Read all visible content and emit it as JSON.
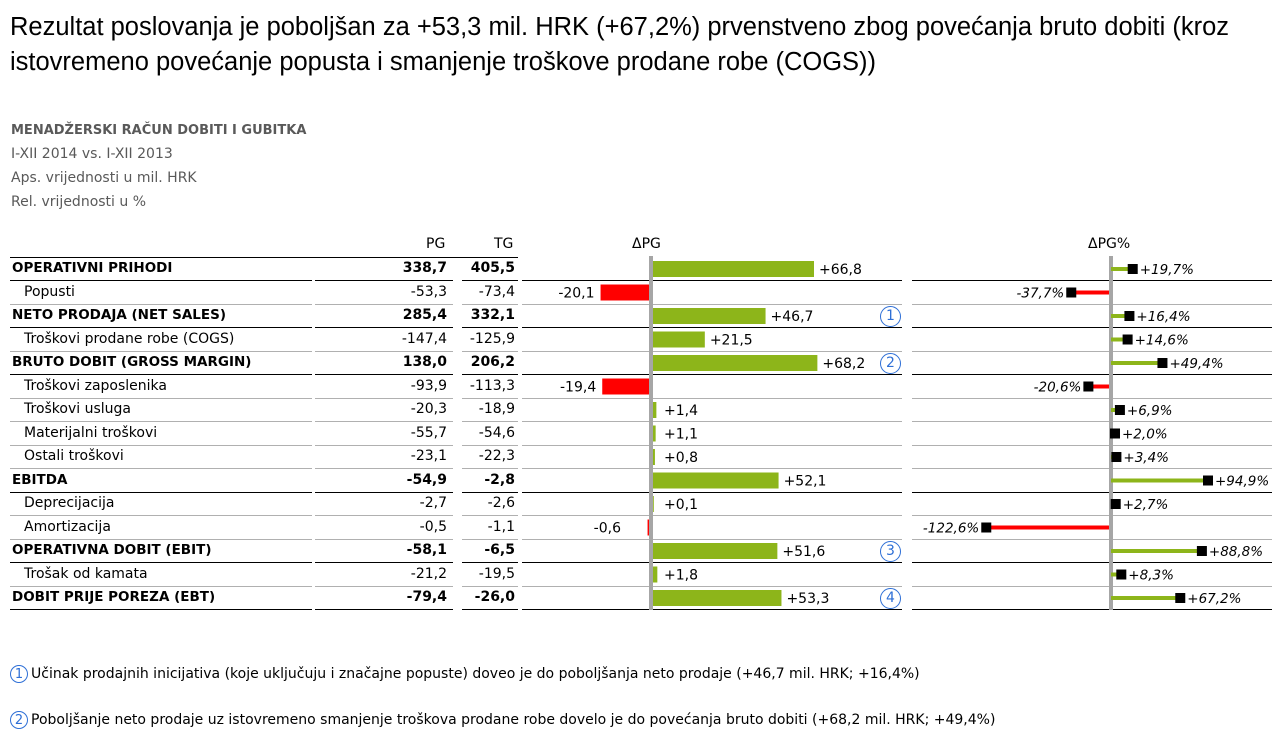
{
  "headline": "Rezultat poslovanja je poboljšan za +53,3 mil. HRK (+67,2%) prvenstveno zbog povećanja bruto dobiti (kroz istovremeno povećanje popusta i smanjenje troškove prodane robe (COGS))",
  "meta": {
    "title": "MENADŽERSKI RAČUN DOBITI I GUBITKA",
    "period": "I-XII 2014 vs. I-XII 2013",
    "abs_note": "Aps. vrijednosti u mil. HRK",
    "rel_note": "Rel. vrijednosti u %"
  },
  "columns": {
    "pg": "PG",
    "tg": "TG",
    "delta": "ΔPG",
    "delta_pct": "ΔPG%"
  },
  "colors": {
    "positive": "#8db51a",
    "negative": "#ff0000",
    "axis": "#a6a6a6",
    "marker": "#000000",
    "circle": "#2e6fd6"
  },
  "chart_data": {
    "type": "bar",
    "categories": [
      "OPERATIVNI PRIHODI",
      "Popusti",
      "NETO PRODAJA (NET SALES)",
      "Troškovi prodane robe (COGS)",
      "BRUTO DOBIT (GROSS MARGIN)",
      "Troškovi zaposlenika",
      "Troškovi usluga",
      "Materijalni troškovi",
      "Ostali troškovi",
      "EBITDA",
      "Deprecijacija",
      "Amortizacija",
      "OPERATIVNA DOBIT (EBIT)",
      "Trošak od kamata",
      "DOBIT PRIJE POREZA (EBT)"
    ],
    "series": [
      {
        "name": "PG",
        "values": [
          338.7,
          -53.3,
          285.4,
          -147.4,
          138.0,
          -93.9,
          -20.3,
          -55.7,
          -23.1,
          -54.9,
          -2.7,
          -0.5,
          -58.1,
          -21.2,
          -79.4
        ]
      },
      {
        "name": "TG",
        "values": [
          405.5,
          -73.4,
          332.1,
          -125.9,
          206.2,
          -113.3,
          -18.9,
          -54.6,
          -22.3,
          -2.8,
          -2.6,
          -1.1,
          -6.5,
          -19.5,
          -26.0
        ]
      },
      {
        "name": "ΔPG",
        "values": [
          66.8,
          -20.1,
          46.7,
          21.5,
          68.2,
          -19.4,
          1.4,
          1.1,
          0.8,
          52.1,
          0.1,
          -0.6,
          51.6,
          1.8,
          53.3
        ]
      },
      {
        "name": "ΔPG%",
        "values": [
          19.7,
          -37.7,
          16.4,
          14.6,
          49.4,
          -20.6,
          6.9,
          2.0,
          3.4,
          94.9,
          2.7,
          -122.6,
          88.8,
          8.3,
          67.2
        ]
      }
    ]
  },
  "rows": [
    {
      "label": "OPERATIVNI PRIHODI",
      "bold": true,
      "indent": false,
      "pg": "338,7",
      "tg": "405,5",
      "d": "+66,8",
      "dp": "+19,7%",
      "circle": ""
    },
    {
      "label": "Popusti",
      "bold": false,
      "indent": true,
      "pg": "-53,3",
      "tg": "-73,4",
      "d": "-20,1",
      "dp": "-37,7%",
      "circle": ""
    },
    {
      "label": "NETO PRODAJA (NET SALES)",
      "bold": true,
      "indent": false,
      "pg": "285,4",
      "tg": "332,1",
      "d": "+46,7",
      "dp": "+16,4%",
      "circle": "1"
    },
    {
      "label": "Troškovi prodane robe (COGS)",
      "bold": false,
      "indent": true,
      "pg": "-147,4",
      "tg": "-125,9",
      "d": "+21,5",
      "dp": "+14,6%",
      "circle": ""
    },
    {
      "label": "BRUTO DOBIT (GROSS MARGIN)",
      "bold": true,
      "indent": false,
      "pg": "138,0",
      "tg": "206,2",
      "d": "+68,2",
      "dp": "+49,4%",
      "circle": "2"
    },
    {
      "label": "Troškovi zaposlenika",
      "bold": false,
      "indent": true,
      "pg": "-93,9",
      "tg": "-113,3",
      "d": "-19,4",
      "dp": "-20,6%",
      "circle": ""
    },
    {
      "label": "Troškovi usluga",
      "bold": false,
      "indent": true,
      "pg": "-20,3",
      "tg": "-18,9",
      "d": "+1,4",
      "dp": "+6,9%",
      "circle": ""
    },
    {
      "label": "Materijalni troškovi",
      "bold": false,
      "indent": true,
      "pg": "-55,7",
      "tg": "-54,6",
      "d": "+1,1",
      "dp": "+2,0%",
      "circle": ""
    },
    {
      "label": "Ostali troškovi",
      "bold": false,
      "indent": true,
      "pg": "-23,1",
      "tg": "-22,3",
      "d": "+0,8",
      "dp": "+3,4%",
      "circle": ""
    },
    {
      "label": "EBITDA",
      "bold": true,
      "indent": false,
      "pg": "-54,9",
      "tg": "-2,8",
      "d": "+52,1",
      "dp": "+94,9%",
      "circle": ""
    },
    {
      "label": "Deprecijacija",
      "bold": false,
      "indent": true,
      "pg": "-2,7",
      "tg": "-2,6",
      "d": "+0,1",
      "dp": "+2,7%",
      "circle": ""
    },
    {
      "label": "Amortizacija",
      "bold": false,
      "indent": true,
      "pg": "-0,5",
      "tg": "-1,1",
      "d": "-0,6",
      "dp": "-122,6%",
      "circle": ""
    },
    {
      "label": "OPERATIVNA DOBIT (EBIT)",
      "bold": true,
      "indent": false,
      "pg": "-58,1",
      "tg": "-6,5",
      "d": "+51,6",
      "dp": "+88,8%",
      "circle": "3"
    },
    {
      "label": "Trošak od kamata",
      "bold": false,
      "indent": true,
      "pg": "-21,2",
      "tg": "-19,5",
      "d": "+1,8",
      "dp": "+8,3%",
      "circle": ""
    },
    {
      "label": "DOBIT PRIJE POREZA (EBT)",
      "bold": true,
      "indent": false,
      "pg": "-79,4",
      "tg": "-26,0",
      "d": "+53,3",
      "dp": "+67,2%",
      "circle": "4"
    }
  ],
  "footnotes": [
    {
      "num": "1",
      "text": "Učinak prodajnih inicijativa (koje uključuju i značajne popuste) doveo je do poboljšanja neto prodaje (+46,7 mil. HRK; +16,4%)"
    },
    {
      "num": "2",
      "text": "Poboljšanje neto prodaje uz istovremeno smanjenje troškova prodane robe dovelo je do povećanja bruto dobiti (+68,2 mil. HRK; +49,4%)"
    }
  ]
}
